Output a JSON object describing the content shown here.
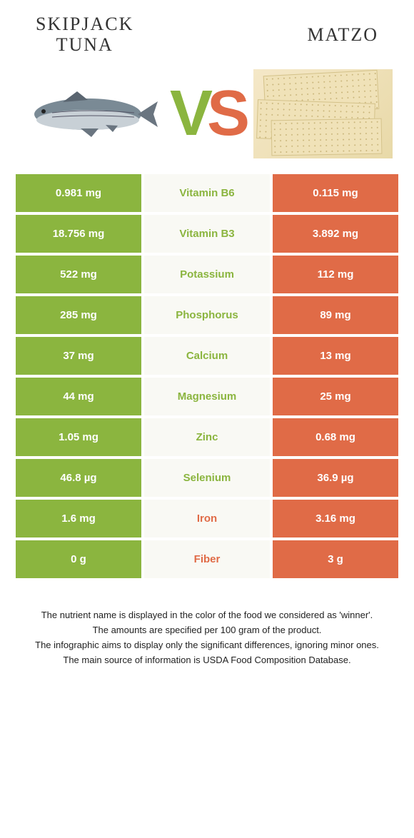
{
  "header": {
    "food1_line1": "Skipjack",
    "food1_line2": "tuna",
    "food2": "Matzo"
  },
  "vs": {
    "v": "V",
    "s": "S"
  },
  "colors": {
    "green": "#8bb53f",
    "orange": "#e06b47",
    "light": "#f9f9f4",
    "white": "#ffffff"
  },
  "rows": [
    {
      "left": "0.981 mg",
      "mid": "Vitamin B6",
      "right": "0.115 mg",
      "winner": "left"
    },
    {
      "left": "18.756 mg",
      "mid": "Vitamin B3",
      "right": "3.892 mg",
      "winner": "left"
    },
    {
      "left": "522 mg",
      "mid": "Potassium",
      "right": "112 mg",
      "winner": "left"
    },
    {
      "left": "285 mg",
      "mid": "Phosphorus",
      "right": "89 mg",
      "winner": "left"
    },
    {
      "left": "37 mg",
      "mid": "Calcium",
      "right": "13 mg",
      "winner": "left"
    },
    {
      "left": "44 mg",
      "mid": "Magnesium",
      "right": "25 mg",
      "winner": "left"
    },
    {
      "left": "1.05 mg",
      "mid": "Zinc",
      "right": "0.68 mg",
      "winner": "left"
    },
    {
      "left": "46.8 µg",
      "mid": "Selenium",
      "right": "36.9 µg",
      "winner": "left"
    },
    {
      "left": "1.6 mg",
      "mid": "Iron",
      "right": "3.16 mg",
      "winner": "right"
    },
    {
      "left": "0 g",
      "mid": "Fiber",
      "right": "3 g",
      "winner": "right"
    }
  ],
  "footer": {
    "line1": "The nutrient name is displayed in the color of the food we considered as 'winner'.",
    "line2": "The amounts are specified per 100 gram of the product.",
    "line3": "The infographic aims to display only the significant differences, ignoring minor ones.",
    "line4": "The main source of information is USDA Food Composition Database."
  }
}
